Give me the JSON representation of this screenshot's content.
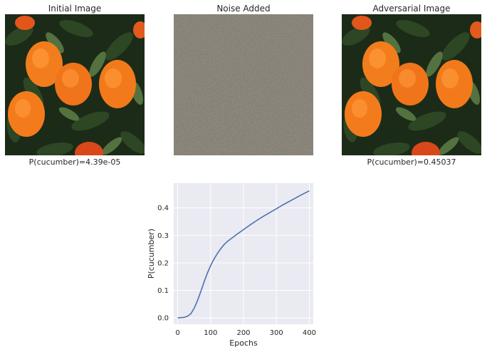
{
  "panels": [
    {
      "title": "Initial Image",
      "caption": "P(cucumber)=4.39e-05",
      "image": "orange-tree-photo"
    },
    {
      "title": "Noise Added",
      "caption": "",
      "image": "adversarial-noise"
    },
    {
      "title": "Adversarial Image",
      "caption": "P(cucumber)=0.45037",
      "image": "orange-tree-photo"
    }
  ],
  "colors": {
    "plot_background": "#eaeaf2",
    "grid": "#ffffff",
    "line": "#4c72b0",
    "noise_base": "#7f7d72"
  },
  "chart_data": {
    "type": "line",
    "title": "",
    "xlabel": "Epochs",
    "ylabel": "P(cucumber)",
    "xlim": [
      -12,
      412
    ],
    "ylim": [
      -0.023,
      0.49
    ],
    "xticks": [
      0,
      100,
      200,
      300,
      400
    ],
    "yticks": [
      0.0,
      0.1,
      0.2,
      0.3,
      0.4
    ],
    "ytick_labels": [
      "0.0",
      "0.1",
      "0.2",
      "0.3",
      "0.4"
    ],
    "grid": true,
    "series": [
      {
        "x": [
          0,
          10,
          20,
          30,
          40,
          50,
          60,
          70,
          80,
          90,
          100,
          110,
          120,
          130,
          140,
          150,
          160,
          180,
          200,
          220,
          240,
          260,
          280,
          300,
          320,
          340,
          360,
          380,
          400
        ],
        "values": [
          0.0,
          0.001,
          0.002,
          0.006,
          0.015,
          0.035,
          0.062,
          0.095,
          0.13,
          0.162,
          0.19,
          0.213,
          0.233,
          0.25,
          0.265,
          0.277,
          0.286,
          0.304,
          0.321,
          0.338,
          0.354,
          0.369,
          0.383,
          0.397,
          0.411,
          0.424,
          0.437,
          0.45,
          0.462
        ]
      }
    ]
  }
}
